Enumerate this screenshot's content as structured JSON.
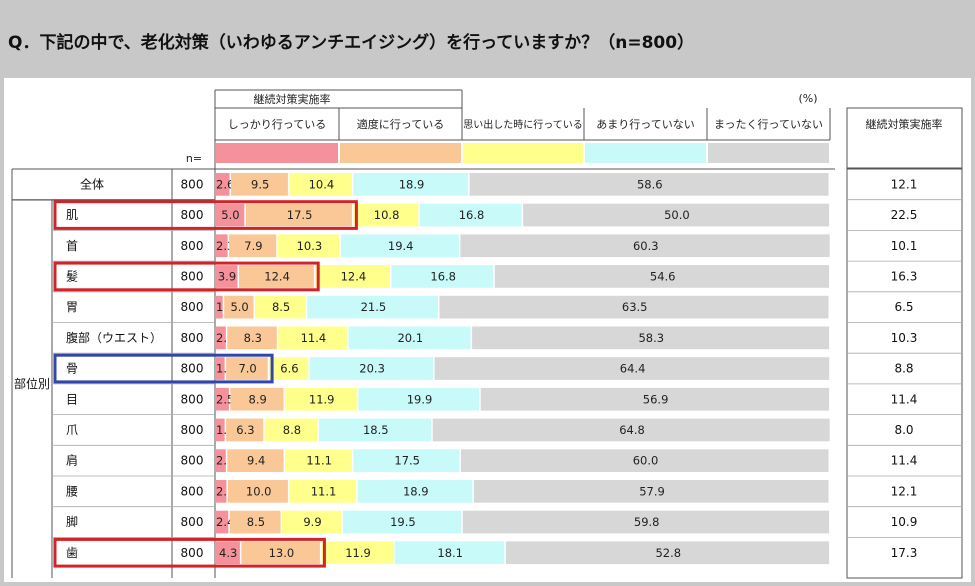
{
  "question": "Q．下記の中で、老化対策（いわゆるアンチエイジング）を行っていますか？（n=800）",
  "unit": "(%)",
  "n_label": "n=",
  "side_label": "部位別",
  "continuation_header": "継続対策実施率",
  "right_header": "継続対策実施率",
  "colors": {
    "series": [
      "#f4919a",
      "#fac896",
      "#ffff8c",
      "#c8fafa",
      "#d7d7d7"
    ],
    "highlight_red": "#d22328",
    "highlight_blue": "#3246aa"
  },
  "chart_data": {
    "type": "bar",
    "orientation": "horizontal",
    "stacked": true,
    "xlim": [
      0,
      100
    ],
    "legend_position": "top",
    "series": [
      {
        "name": "しっかり行っている",
        "values": [
          2.6,
          5.0,
          2.3,
          3.9,
          1.5,
          2.0,
          1.8,
          2.5,
          1.8,
          2.0,
          2.1,
          2.4,
          4.3
        ]
      },
      {
        "name": "適度に行っている",
        "values": [
          9.5,
          17.5,
          7.9,
          12.4,
          5.0,
          8.3,
          7.0,
          8.9,
          6.3,
          9.4,
          10.0,
          8.5,
          13.0
        ]
      },
      {
        "name": "思い出した時に行っている",
        "values": [
          10.4,
          10.8,
          10.3,
          12.4,
          8.5,
          11.4,
          6.6,
          11.9,
          8.8,
          11.1,
          11.1,
          9.9,
          11.9
        ]
      },
      {
        "name": "あまり行っていない",
        "values": [
          18.9,
          16.8,
          19.4,
          16.8,
          21.5,
          20.1,
          20.3,
          19.9,
          18.5,
          17.5,
          18.9,
          19.5,
          18.1
        ]
      },
      {
        "name": "まったく行っていない",
        "values": [
          58.6,
          50.0,
          60.3,
          54.6,
          63.5,
          58.3,
          64.4,
          56.9,
          64.8,
          60.0,
          57.9,
          59.8,
          52.8
        ]
      }
    ],
    "rows": [
      {
        "label": "全体",
        "n": "800",
        "rate": "12.1"
      },
      {
        "label": "肌",
        "n": "800",
        "rate": "22.5",
        "highlight": "red"
      },
      {
        "label": "首",
        "n": "800",
        "rate": "10.1"
      },
      {
        "label": "髪",
        "n": "800",
        "rate": "16.3",
        "highlight": "red"
      },
      {
        "label": "胃",
        "n": "800",
        "rate": "6.5"
      },
      {
        "label": "腹部（ウエスト）",
        "n": "800",
        "rate": "10.3"
      },
      {
        "label": "骨",
        "n": "800",
        "rate": "8.8",
        "highlight": "blue"
      },
      {
        "label": "目",
        "n": "800",
        "rate": "11.4"
      },
      {
        "label": "爪",
        "n": "800",
        "rate": "8.0"
      },
      {
        "label": "肩",
        "n": "800",
        "rate": "11.4"
      },
      {
        "label": "腰",
        "n": "800",
        "rate": "12.1"
      },
      {
        "label": "脚",
        "n": "800",
        "rate": "10.9"
      },
      {
        "label": "歯",
        "n": "800",
        "rate": "17.3",
        "highlight": "red"
      }
    ]
  }
}
